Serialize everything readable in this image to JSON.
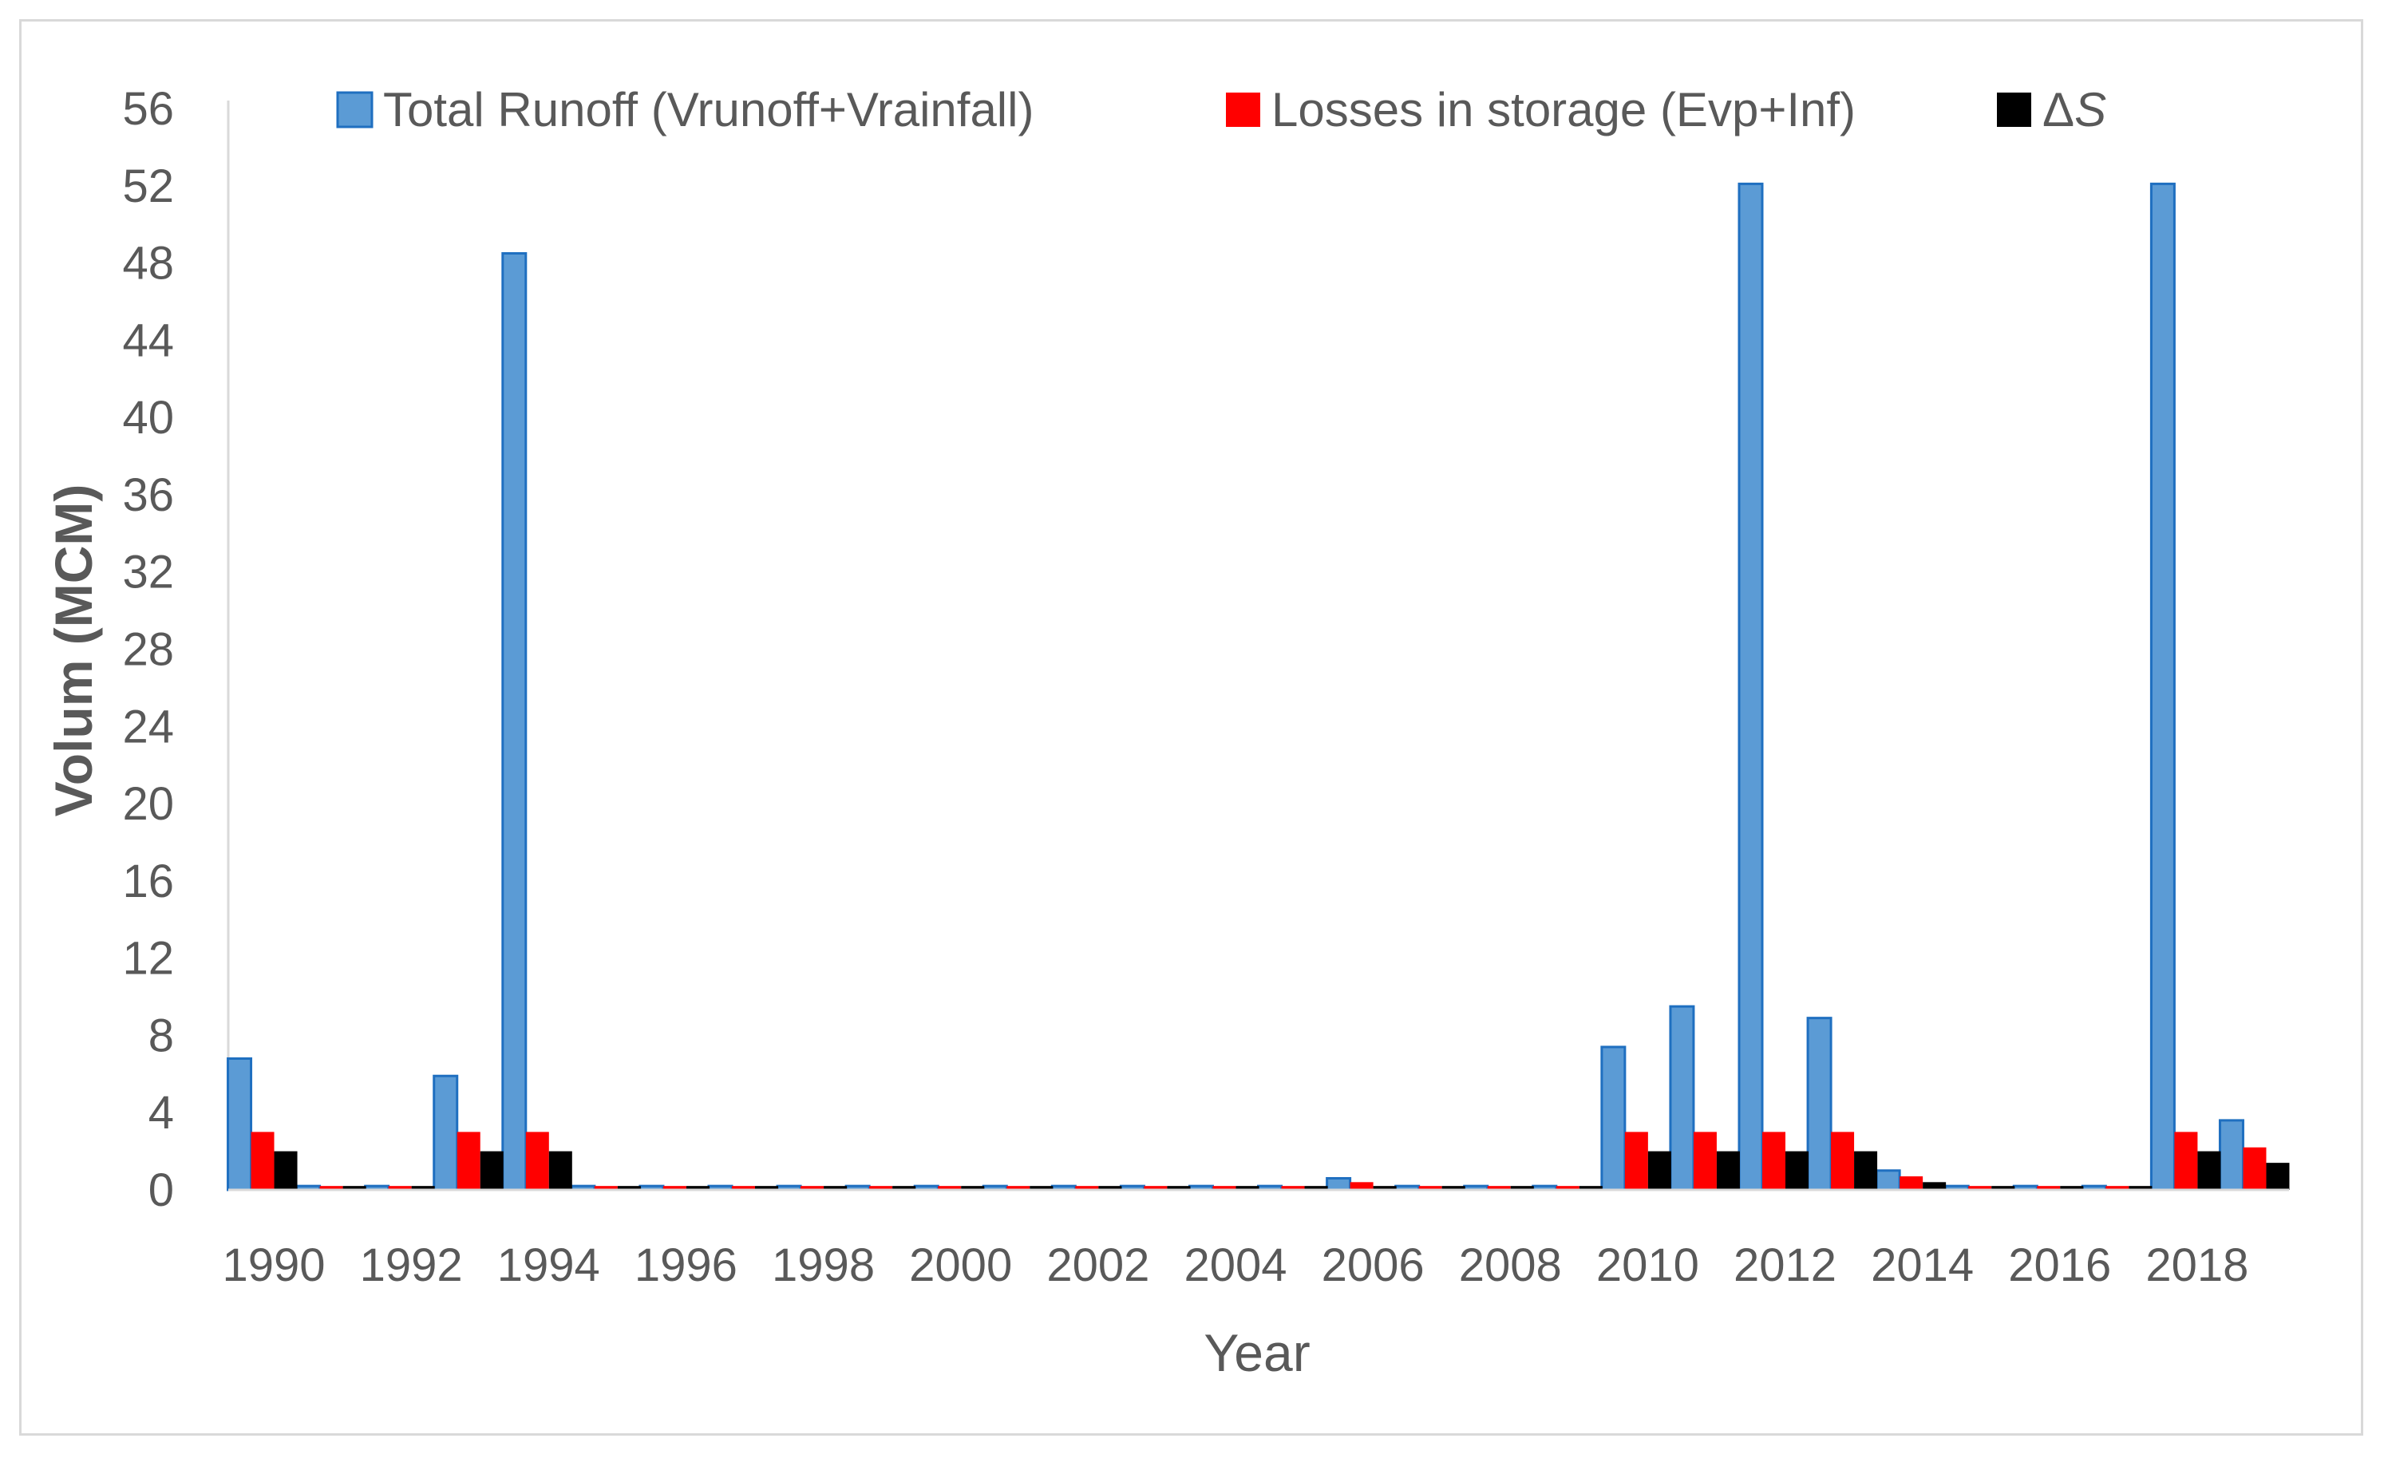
{
  "chart_data": {
    "type": "bar",
    "title": "",
    "xlabel": "Year",
    "ylabel": "Volum (MCM)",
    "ylim": [
      0,
      56
    ],
    "yticks": [
      "0",
      "4",
      "8",
      "12",
      "16",
      "20",
      "24",
      "28",
      "32",
      "36",
      "40",
      "44",
      "48",
      "52",
      "56"
    ],
    "xtick_labels": [
      "1990",
      "1992",
      "1994",
      "1996",
      "1998",
      "2000",
      "2002",
      "2004",
      "2006",
      "2008",
      "2010",
      "2012",
      "2014",
      "2016",
      "2018"
    ],
    "categories": [
      1990,
      1991,
      1992,
      1993,
      1994,
      1995,
      1996,
      1997,
      1998,
      1999,
      2000,
      2001,
      2002,
      2003,
      2004,
      2005,
      2006,
      2007,
      2008,
      2009,
      2010,
      2011,
      2012,
      2013,
      2014,
      2015,
      2016,
      2017,
      2018,
      2019
    ],
    "grid": false,
    "legend_position": "top",
    "series": [
      {
        "name": "Total Runoff (Vrunoff+Vrainfall)",
        "color": "#5b9bd5",
        "edge": "#1f6fc0",
        "values": [
          6.8,
          0.2,
          0.2,
          5.9,
          48.5,
          0.2,
          0.2,
          0.2,
          0.2,
          0.2,
          0.2,
          0.2,
          0.2,
          0.2,
          0.2,
          0.2,
          0.6,
          0.2,
          0.2,
          0.2,
          7.4,
          9.5,
          52.1,
          8.9,
          1.0,
          0.2,
          0.2,
          0.2,
          52.1,
          3.6
        ]
      },
      {
        "name": "Losses in storage (Evp+Inf)",
        "color": "#ff0000",
        "values": [
          3.0,
          0.2,
          0.2,
          3.0,
          3.0,
          0.2,
          0.2,
          0.2,
          0.2,
          0.2,
          0.2,
          0.2,
          0.2,
          0.2,
          0.2,
          0.2,
          0.4,
          0.2,
          0.2,
          0.2,
          3.0,
          3.0,
          3.0,
          3.0,
          0.7,
          0.2,
          0.2,
          0.2,
          3.0,
          2.2
        ]
      },
      {
        "name": "ΔS",
        "color": "#000000",
        "values": [
          2.0,
          0.2,
          0.2,
          2.0,
          2.0,
          0.2,
          0.2,
          0.2,
          0.2,
          0.2,
          0.2,
          0.2,
          0.2,
          0.2,
          0.2,
          0.2,
          0.2,
          0.2,
          0.2,
          0.2,
          2.0,
          2.0,
          2.0,
          2.0,
          0.4,
          0.2,
          0.2,
          0.2,
          2.0,
          1.4
        ]
      }
    ]
  }
}
